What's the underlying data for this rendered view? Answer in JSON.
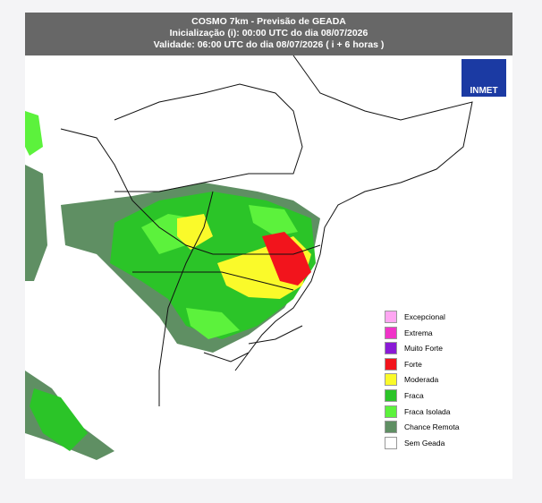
{
  "header": {
    "title": "COSMO 7km - Previsão de GEADA",
    "init": "Inicialização (i): 00:00 UTC do dia 08/07/2026",
    "valid": "Validade: 06:00 UTC do dia 08/07/2026 ( i + 6 horas )"
  },
  "logo": {
    "text": "INMET"
  },
  "legend": {
    "items": [
      {
        "label": "Excepcional",
        "color": "#ffa6f2"
      },
      {
        "label": "Extrema",
        "color": "#f033c8"
      },
      {
        "label": "Muito Forte",
        "color": "#8a1ad6"
      },
      {
        "label": "Forte",
        "color": "#f2141c"
      },
      {
        "label": "Moderada",
        "color": "#fafa2a"
      },
      {
        "label": "Fraca",
        "color": "#2bc428"
      },
      {
        "label": "Fraca Isolada",
        "color": "#5cf23c"
      },
      {
        "label": "Chance Remota",
        "color": "#5f8f63"
      },
      {
        "label": "Sem Geada",
        "color": "#ffffff"
      }
    ]
  }
}
